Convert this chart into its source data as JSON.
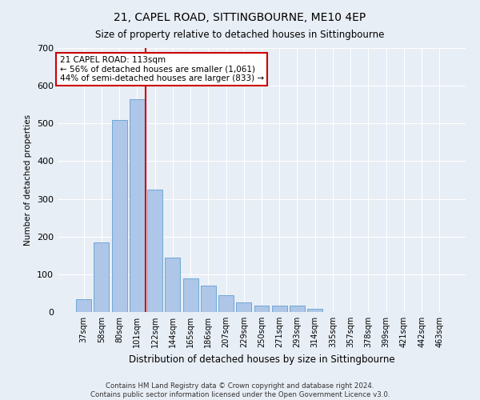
{
  "title": "21, CAPEL ROAD, SITTINGBOURNE, ME10 4EP",
  "subtitle": "Size of property relative to detached houses in Sittingbourne",
  "xlabel": "Distribution of detached houses by size in Sittingbourne",
  "ylabel": "Number of detached properties",
  "footer_line1": "Contains HM Land Registry data © Crown copyright and database right 2024.",
  "footer_line2": "Contains public sector information licensed under the Open Government Licence v3.0.",
  "annotation_title": "21 CAPEL ROAD: 113sqm",
  "annotation_line1": "← 56% of detached houses are smaller (1,061)",
  "annotation_line2": "44% of semi-detached houses are larger (833) →",
  "categories": [
    "37sqm",
    "58sqm",
    "80sqm",
    "101sqm",
    "122sqm",
    "144sqm",
    "165sqm",
    "186sqm",
    "207sqm",
    "229sqm",
    "250sqm",
    "271sqm",
    "293sqm",
    "314sqm",
    "335sqm",
    "357sqm",
    "378sqm",
    "399sqm",
    "421sqm",
    "442sqm",
    "463sqm"
  ],
  "values": [
    35,
    185,
    510,
    565,
    325,
    145,
    90,
    70,
    45,
    25,
    18,
    18,
    18,
    8,
    0,
    0,
    0,
    0,
    0,
    0,
    0
  ],
  "bar_color": "#aec6e8",
  "bar_edge_color": "#6fa8d4",
  "vline_color": "#cc0000",
  "vline_x": 3.5,
  "background_color": "#e8eef6",
  "annotation_box_color": "#ffffff",
  "annotation_box_edge": "#cc0000",
  "ylim": [
    0,
    700
  ],
  "yticks": [
    0,
    100,
    200,
    300,
    400,
    500,
    600,
    700
  ]
}
